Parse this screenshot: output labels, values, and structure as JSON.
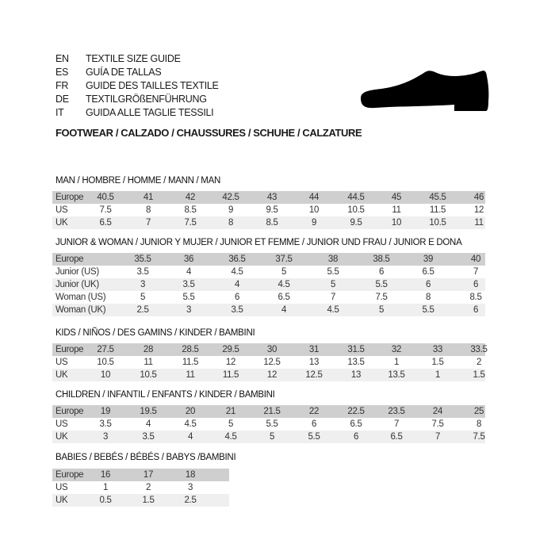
{
  "header": {
    "languages": [
      {
        "code": "EN",
        "text": "TEXTILE SIZE GUIDE"
      },
      {
        "code": "ES",
        "text": "GUÍA DE TALLAS"
      },
      {
        "code": "FR",
        "text": "GUIDE DES TAILLES TEXTILE"
      },
      {
        "code": "DE",
        "text": "TEXTILGRÖßENFÜHRUNG"
      },
      {
        "code": "IT",
        "text": "GUIDA ALLE TAGLIE TESSILI"
      }
    ],
    "subtitle": "FOOTWEAR / CALZADO / CHAUSSURES / SCHUHE / CALZATURE",
    "illustration": "shoe-icon"
  },
  "colors": {
    "header_row": "#cfcfcf",
    "alt_row": "#efefef"
  },
  "sections": [
    {
      "title": "MAN / HOMBRE / HOMME / MANN / MAN",
      "rows": [
        {
          "label": "Europe",
          "values": [
            "40.5",
            "41",
            "42",
            "42.5",
            "43",
            "44",
            "44.5",
            "45",
            "45.5",
            "46"
          ]
        },
        {
          "label": "US",
          "values": [
            "7.5",
            "8",
            "8.5",
            "9",
            "9.5",
            "10",
            "10.5",
            "11",
            "11.5",
            "12"
          ]
        },
        {
          "label": "UK",
          "values": [
            "6.5",
            "7",
            "7.5",
            "8",
            "8.5",
            "9",
            "9.5",
            "10",
            "10.5",
            "11"
          ]
        }
      ]
    },
    {
      "title": "JUNIOR & WOMAN / JUNIOR Y MUJER / JUNIOR ET FEMME / JUNIOR UND FRAU / JUNIOR E DONA",
      "rows": [
        {
          "label": "Europe",
          "values": [
            "35.5",
            "36",
            "36.5",
            "37.5",
            "38",
            "38.5",
            "39",
            "40"
          ]
        },
        {
          "label": "Junior (US)",
          "values": [
            "3.5",
            "4",
            "4.5",
            "5",
            "5.5",
            "6",
            "6.5",
            "7"
          ]
        },
        {
          "label": "Junior (UK)",
          "values": [
            "3",
            "3.5",
            "4",
            "4.5",
            "5",
            "5.5",
            "6",
            "6"
          ]
        },
        {
          "label": "Woman (US)",
          "values": [
            "5",
            "5.5",
            "6",
            "6.5",
            "7",
            "7.5",
            "8",
            "8.5"
          ]
        },
        {
          "label": "Woman (UK)",
          "values": [
            "2.5",
            "3",
            "3.5",
            "4",
            "4.5",
            "5",
            "5.5",
            "6"
          ]
        }
      ]
    },
    {
      "title": "KIDS / NIÑOS / DES GAMINS / KINDER / BAMBINI",
      "rows": [
        {
          "label": "Europe",
          "values": [
            "27.5",
            "28",
            "28.5",
            "29.5",
            "30",
            "31",
            "31.5",
            "32",
            "33",
            "33.5"
          ]
        },
        {
          "label": "US",
          "values": [
            "10.5",
            "11",
            "11.5",
            "12",
            "12.5",
            "13",
            "13.5",
            "1",
            "1.5",
            "2"
          ]
        },
        {
          "label": "UK",
          "values": [
            "10",
            "10.5",
            "11",
            "11.5",
            "12",
            "12.5",
            "13",
            "13.5",
            "1",
            "1.5"
          ]
        }
      ]
    },
    {
      "title": "CHILDREN / INFANTIL / ENFANTS / KINDER / BAMBINI",
      "rows": [
        {
          "label": "Europe",
          "values": [
            "19",
            "19.5",
            "20",
            "21",
            "21.5",
            "22",
            "22.5",
            "23.5",
            "24",
            "25"
          ]
        },
        {
          "label": "US",
          "values": [
            "3.5",
            "4",
            "4.5",
            "5",
            "5.5",
            "6",
            "6.5",
            "7",
            "7.5",
            "8"
          ]
        },
        {
          "label": "UK",
          "values": [
            "3",
            "3.5",
            "4",
            "4.5",
            "5",
            "5.5",
            "6",
            "6.5",
            "7",
            "7.5"
          ]
        }
      ]
    },
    {
      "title": "BABIES  / BEBÉS / BÉBÉS / BABYS /BAMBINI",
      "rows": [
        {
          "label": "Europe",
          "values": [
            "16",
            "17",
            "18"
          ]
        },
        {
          "label": "US",
          "values": [
            "1",
            "2",
            "3"
          ]
        },
        {
          "label": "UK",
          "values": [
            "0.5",
            "1.5",
            "2.5"
          ]
        }
      ]
    }
  ]
}
